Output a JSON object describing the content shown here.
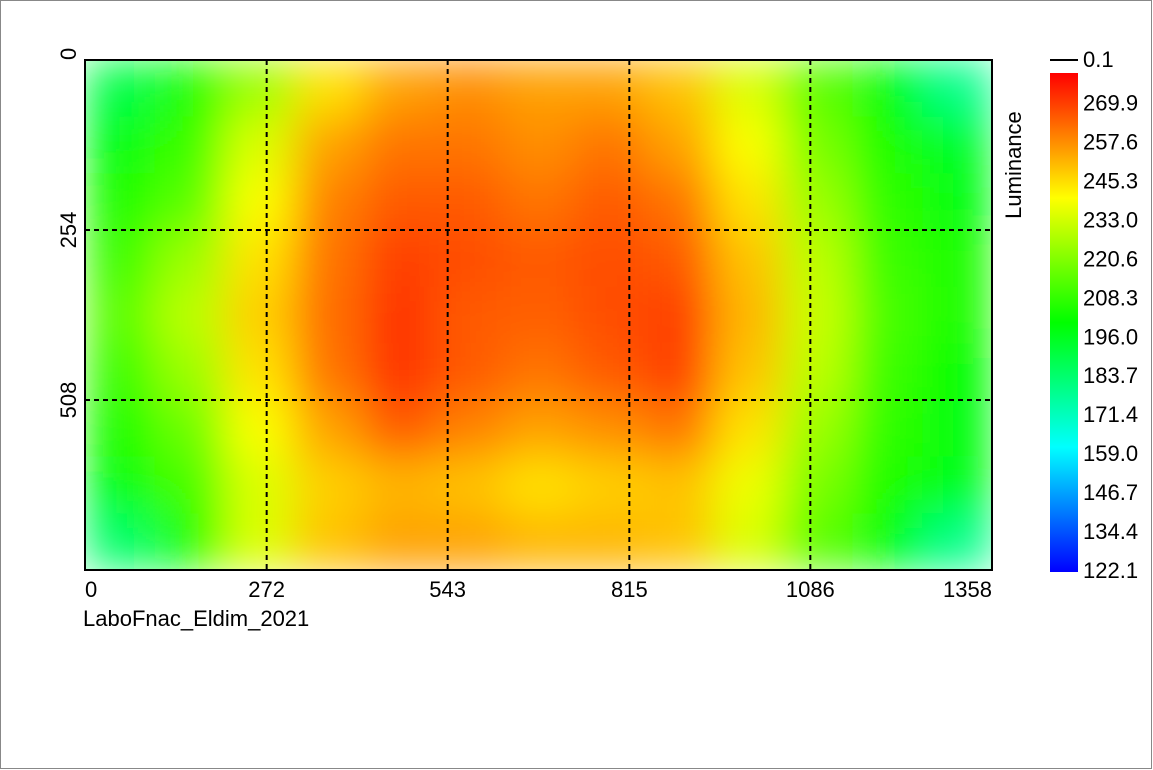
{
  "chart_data": {
    "type": "heatmap",
    "caption": "LaboFnac_Eldim_2021",
    "colorbar_label": "Luminance",
    "colorbar_top_value": 0.1,
    "xlim": [
      0,
      1358
    ],
    "xticks": [
      0,
      272,
      543,
      815,
      1086,
      1358
    ],
    "ylim": [
      0,
      762
    ],
    "yticks": [
      0,
      254,
      508
    ],
    "grid": true,
    "clim": [
      122.1,
      280
    ],
    "cticks": [
      269.9,
      257.6,
      245.3,
      {
        "value": 233,
        "label": "233.0"
      },
      220.6,
      208.3,
      {
        "value": 196,
        "label": "196.0"
      },
      183.7,
      171.4,
      {
        "value": 159,
        "label": "159.0"
      },
      146.7,
      134.4,
      122.1
    ],
    "colormap": [
      "#0000ff",
      "#00ffff",
      "#00ff00",
      "#ffff00",
      "#ff0000"
    ],
    "z": [
      [
        190,
        205,
        225,
        245,
        255,
        258,
        255,
        255,
        250,
        235,
        215,
        200,
        180
      ],
      [
        200,
        210,
        235,
        255,
        262,
        262,
        258,
        262,
        255,
        240,
        220,
        205,
        195
      ],
      [
        205,
        215,
        240,
        260,
        266,
        266,
        262,
        266,
        262,
        245,
        225,
        208,
        200
      ],
      [
        210,
        225,
        245,
        262,
        270,
        268,
        266,
        268,
        266,
        250,
        230,
        210,
        205
      ],
      [
        215,
        230,
        248,
        263,
        272,
        266,
        265,
        268,
        270,
        252,
        232,
        212,
        205
      ],
      [
        210,
        225,
        245,
        262,
        272,
        266,
        262,
        266,
        270,
        250,
        230,
        210,
        202
      ],
      [
        205,
        218,
        240,
        255,
        266,
        260,
        255,
        258,
        262,
        245,
        225,
        208,
        200
      ],
      [
        200,
        212,
        235,
        248,
        252,
        250,
        245,
        248,
        250,
        238,
        220,
        205,
        198
      ],
      [
        185,
        205,
        235,
        250,
        255,
        255,
        252,
        252,
        250,
        235,
        215,
        200,
        180
      ]
    ]
  }
}
